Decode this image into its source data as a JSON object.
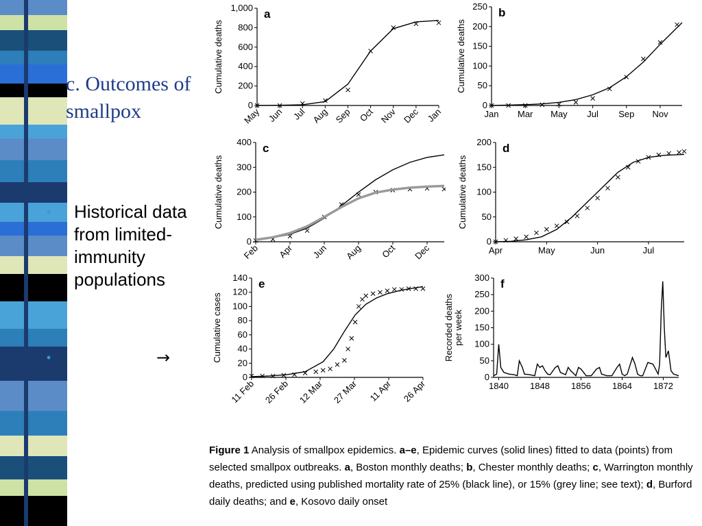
{
  "slide": {
    "title": "c. Outcomes of smallpox",
    "bullet_text": "Historical data from limited-immunity populations",
    "arrow": "→"
  },
  "colors": {
    "stripe": [
      "#5b8cc8",
      "#1a4f7a",
      "#2c7fb8",
      "#cfe2a5",
      "#000000",
      "#2a6fd6",
      "#dfe6b8",
      "#1b3b6f",
      "#4aa3d8",
      "#ffffff"
    ],
    "curve": "#000000",
    "grey_curve": "#9a9a9a"
  },
  "caption": {
    "lead": "Figure 1",
    "body_1": " Analysis of smallpox epidemics. ",
    "ae": "a–e",
    "body_2": ", Epidemic curves (solid lines) fitted to data (points) from selected smallpox outbreaks. ",
    "a": "a",
    "body_3": ", Boston monthly deaths; ",
    "b": "b",
    "body_4": ", Chester monthly deaths; ",
    "c": "c",
    "body_5": ", Warrington monthly deaths, predicted using published mortality rate of 25% (black line), or 15% (grey line; see text); ",
    "d": "d",
    "body_6": ", Burford daily deaths; and ",
    "e": "e",
    "body_7": ", Kosovo daily onset"
  },
  "chart_data": [
    {
      "id": "a",
      "type": "line",
      "panel_label": "a",
      "ylabel": "Cumulative deaths",
      "x_ticks": [
        "May",
        "Jun",
        "Jul",
        "Aug",
        "Sep",
        "Oct",
        "Nov",
        "Dec",
        "Jan"
      ],
      "y_ticks": [
        "0",
        "200",
        "400",
        "600",
        "800",
        "1,000"
      ],
      "ylim": [
        0,
        1000
      ],
      "series": [
        {
          "kind": "points",
          "values": [
            0,
            0,
            20,
            50,
            160,
            560,
            800,
            840,
            850
          ]
        },
        {
          "kind": "line",
          "values": [
            0,
            2,
            8,
            40,
            220,
            560,
            790,
            860,
            875
          ]
        }
      ]
    },
    {
      "id": "b",
      "type": "line",
      "panel_label": "b",
      "ylabel": "Cumulative deaths",
      "x_ticks": [
        "Jan",
        "Mar",
        "May",
        "Jul",
        "Sep",
        "Nov"
      ],
      "y_ticks": [
        "0",
        "50",
        "100",
        "150",
        "200",
        "250"
      ],
      "ylim": [
        0,
        250
      ],
      "series": [
        {
          "kind": "points",
          "x": [
            0,
            1,
            2,
            3,
            4,
            5,
            6,
            7,
            8,
            9,
            10,
            11
          ],
          "values": [
            0,
            0,
            0,
            2,
            3,
            8,
            18,
            42,
            72,
            118,
            160,
            205
          ]
        },
        {
          "kind": "line",
          "x": [
            0,
            1,
            2,
            3,
            4,
            5,
            6,
            7,
            8,
            9,
            10,
            11.3
          ],
          "values": [
            0,
            1,
            2,
            4,
            8,
            15,
            27,
            45,
            73,
            110,
            155,
            210
          ]
        }
      ]
    },
    {
      "id": "c",
      "type": "line",
      "panel_label": "c",
      "ylabel": "Cumulative deaths",
      "x_ticks": [
        "Feb",
        "Apr",
        "Jun",
        "Aug",
        "Oct",
        "Dec"
      ],
      "y_ticks": [
        "0",
        "100",
        "200",
        "300",
        "400"
      ],
      "ylim": [
        0,
        400
      ],
      "series": [
        {
          "kind": "points",
          "x": [
            0,
            1,
            2,
            3,
            4,
            5,
            6,
            7,
            8,
            9,
            10,
            11
          ],
          "values": [
            5,
            10,
            22,
            45,
            100,
            150,
            190,
            200,
            208,
            212,
            215,
            212
          ]
        },
        {
          "kind": "line",
          "color": "black",
          "x": [
            0,
            1,
            2,
            3,
            4,
            5,
            6,
            7,
            8,
            9,
            10,
            11
          ],
          "values": [
            8,
            16,
            30,
            55,
            95,
            145,
            200,
            250,
            290,
            320,
            340,
            350
          ]
        },
        {
          "kind": "line",
          "color": "grey",
          "x": [
            0,
            1,
            2,
            3,
            4,
            5,
            6,
            7,
            8,
            9,
            10,
            11
          ],
          "values": [
            8,
            18,
            35,
            62,
            100,
            140,
            175,
            198,
            210,
            218,
            222,
            225
          ]
        }
      ]
    },
    {
      "id": "d",
      "type": "line",
      "panel_label": "d",
      "ylabel": "Cumulative deaths",
      "x_ticks": [
        "Apr",
        "May",
        "Jun",
        "Jul"
      ],
      "y_ticks": [
        "0",
        "50",
        "100",
        "150",
        "200"
      ],
      "ylim": [
        0,
        200
      ],
      "series": [
        {
          "kind": "points",
          "x": [
            0,
            0.2,
            0.4,
            0.6,
            0.8,
            1.0,
            1.2,
            1.4,
            1.6,
            1.8,
            2.0,
            2.2,
            2.4,
            2.6,
            2.8,
            3.0,
            3.2,
            3.4,
            3.6,
            3.7
          ],
          "values": [
            0,
            3,
            6,
            10,
            18,
            25,
            32,
            40,
            52,
            68,
            88,
            108,
            130,
            150,
            162,
            170,
            175,
            178,
            180,
            182
          ]
        },
        {
          "kind": "line",
          "x": [
            0,
            0.3,
            0.6,
            0.9,
            1.2,
            1.5,
            1.8,
            2.1,
            2.4,
            2.7,
            3.0,
            3.3,
            3.7
          ],
          "values": [
            0,
            1,
            4,
            10,
            25,
            50,
            80,
            110,
            140,
            160,
            170,
            174,
            176
          ]
        }
      ]
    },
    {
      "id": "e",
      "type": "line",
      "panel_label": "e",
      "ylabel": "Cumulative cases",
      "x_ticks": [
        "11 Feb",
        "26 Feb",
        "12 Mar",
        "27 Mar",
        "11 Apr",
        "26 Apr"
      ],
      "y_ticks": [
        "0",
        "20",
        "40",
        "60",
        "80",
        "100",
        "120",
        "140"
      ],
      "ylim": [
        0,
        140
      ],
      "series": [
        {
          "kind": "points",
          "x": [
            0,
            0.3,
            0.6,
            0.9,
            1.2,
            1.5,
            1.8,
            2.0,
            2.2,
            2.4,
            2.6,
            2.7,
            2.8,
            2.9,
            3.0,
            3.1,
            3.2,
            3.4,
            3.6,
            3.8,
            4.0,
            4.2,
            4.4,
            4.6,
            4.8
          ],
          "values": [
            2,
            2,
            2,
            3,
            4,
            6,
            8,
            10,
            12,
            18,
            24,
            40,
            55,
            78,
            100,
            110,
            115,
            118,
            120,
            122,
            124,
            124,
            125,
            125,
            125
          ]
        },
        {
          "kind": "line",
          "x": [
            0,
            0.5,
            1.0,
            1.5,
            2.0,
            2.3,
            2.6,
            2.9,
            3.2,
            3.5,
            3.8,
            4.2,
            4.8
          ],
          "values": [
            1,
            2,
            4,
            8,
            22,
            40,
            65,
            88,
            103,
            112,
            118,
            123,
            128
          ]
        }
      ]
    },
    {
      "id": "f",
      "type": "line",
      "panel_label": "f",
      "ylabel": "Recorded deaths per week",
      "x_ticks": [
        "1840",
        "1848",
        "1856",
        "1864",
        "1872"
      ],
      "y_ticks": [
        "0",
        "50",
        "100",
        "150",
        "200",
        "250",
        "300"
      ],
      "ylim": [
        0,
        300
      ],
      "xlim": [
        1839,
        1875
      ],
      "series": [
        {
          "kind": "line",
          "x": [
            1839,
            1839.6,
            1840,
            1840.4,
            1841,
            1842,
            1843,
            1843.6,
            1844,
            1844.6,
            1845,
            1846,
            1847,
            1847.5,
            1848,
            1848.5,
            1849,
            1849.5,
            1850,
            1851,
            1851.5,
            1852,
            1853,
            1853.5,
            1854,
            1855,
            1855.5,
            1856,
            1857,
            1858,
            1859,
            1859.6,
            1860,
            1861,
            1862,
            1863,
            1863.5,
            1864,
            1864.5,
            1865,
            1866,
            1866.5,
            1867,
            1867.5,
            1868,
            1869,
            1870,
            1871,
            1871.3,
            1871.6,
            1871.9,
            1872.2,
            1872.5,
            1873,
            1873.5,
            1874,
            1875
          ],
          "values": [
            5,
            10,
            100,
            30,
            15,
            10,
            8,
            5,
            50,
            30,
            10,
            8,
            5,
            40,
            30,
            35,
            20,
            10,
            8,
            30,
            35,
            15,
            8,
            30,
            20,
            5,
            30,
            25,
            5,
            5,
            25,
            30,
            10,
            5,
            5,
            30,
            40,
            10,
            5,
            10,
            60,
            40,
            10,
            5,
            5,
            45,
            40,
            10,
            40,
            200,
            290,
            150,
            60,
            80,
            20,
            10,
            5
          ]
        }
      ]
    }
  ]
}
